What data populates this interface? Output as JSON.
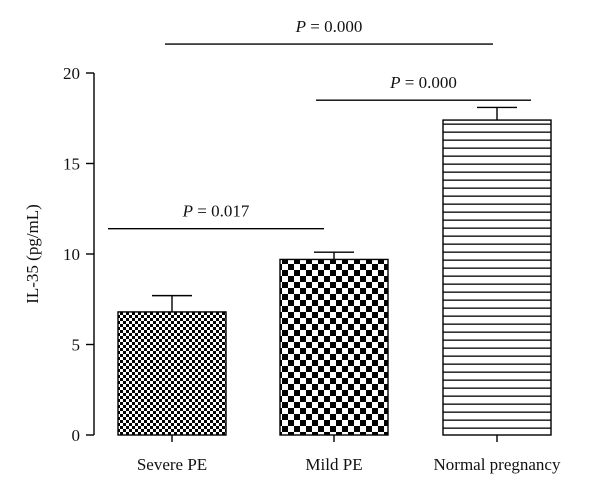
{
  "chart_data": {
    "type": "bar",
    "title": "",
    "xlabel": "",
    "ylabel": "IL-35 (pg/mL)",
    "ylim": [
      0,
      20
    ],
    "yticks": [
      "0",
      "5",
      "10",
      "15",
      "20"
    ],
    "categories": [
      "Severe PE",
      "Mild PE",
      "Normal pregnancy"
    ],
    "values": [
      6.8,
      9.7,
      17.4
    ],
    "error_upper": [
      7.7,
      10.1,
      18.1
    ],
    "patterns": [
      "fine-checker",
      "coarse-checker",
      "horizontal-stripes"
    ],
    "bar_color": "#000000",
    "grid": false,
    "legend": "none",
    "comparisons": [
      {
        "from": 0,
        "to": 1,
        "level": 11.4,
        "label_prefix": "P",
        "label_value": " = 0.017"
      },
      {
        "from": 1,
        "to": 2,
        "level": 18.5,
        "label_prefix": "P",
        "label_value": " = 0.000"
      },
      {
        "from": 0,
        "to": 2,
        "level": 21.6,
        "label_prefix": "P",
        "label_value": " = 0.000"
      }
    ]
  }
}
